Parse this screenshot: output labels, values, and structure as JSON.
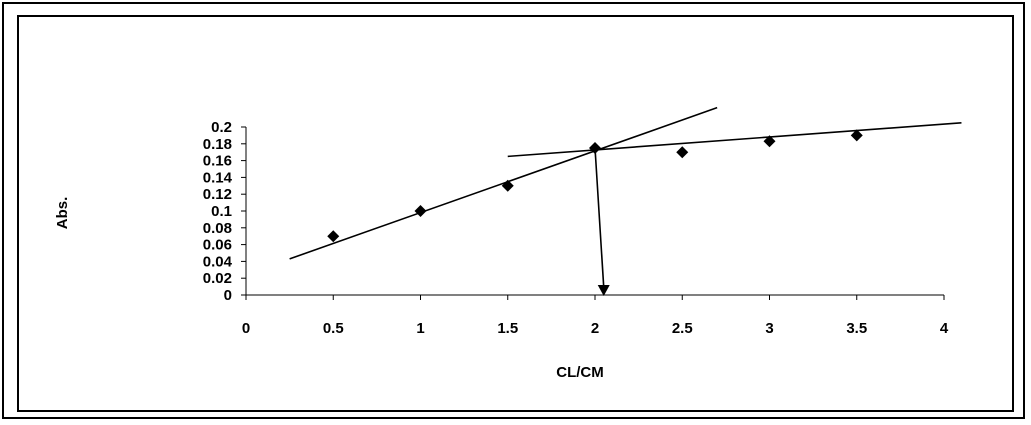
{
  "chart_data": {
    "type": "scatter",
    "xlabel": "CL/CM",
    "ylabel": "Abs.",
    "xlim": [
      0,
      4
    ],
    "ylim": [
      0,
      0.2
    ],
    "x_ticks": [
      "0",
      "0.5",
      "1",
      "1.5",
      "2",
      "2.5",
      "3",
      "3.5",
      "4"
    ],
    "y_ticks": [
      "0",
      "0.02",
      "0.04",
      "0.06",
      "0.08",
      "0.1",
      "0.12",
      "0.14",
      "0.16",
      "0.18",
      "0.2"
    ],
    "grid": false,
    "series": [
      {
        "marker": "diamond",
        "x": [
          0.5,
          1,
          1.5,
          2,
          2.5,
          3,
          3.5
        ],
        "y": [
          0.07,
          0.1,
          0.13,
          0.175,
          0.17,
          0.183,
          0.19
        ]
      }
    ],
    "fit_lines": [
      {
        "x": [
          0.25,
          2.7
        ],
        "y": [
          0.043,
          0.223
        ]
      },
      {
        "x": [
          1.5,
          4.1
        ],
        "y": [
          0.165,
          0.205
        ]
      }
    ],
    "annotation_arrow": {
      "from": [
        2.0,
        0.175
      ],
      "to": [
        2.05,
        0.0
      ]
    }
  }
}
